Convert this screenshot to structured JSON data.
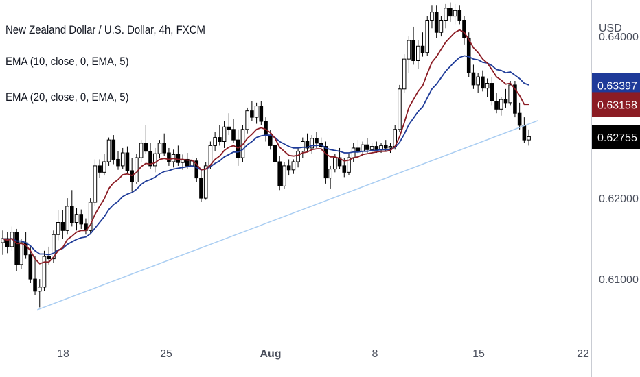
{
  "legend": {
    "title": "New Zealand Dollar / U.S. Dollar, 4h, FXCM",
    "ema1": "EMA (10, close, 0, EMA, 5)",
    "ema2": "EMA (20, close, 0, EMA, 5)"
  },
  "colors": {
    "ema10": "#8b1c24",
    "ema20": "#1f3c99",
    "trendline": "#a9cdf2",
    "candle_up": "#ffffff",
    "candle_down": "#000000",
    "badge_ema20": "#1e3a99",
    "badge_ema10": "#8b1c24",
    "badge_price": "#000000"
  },
  "chart_data": {
    "type": "candlestick",
    "currency_label": "USD",
    "x_tick_labels": [
      "18",
      "25",
      "Aug",
      "8",
      "15",
      "22"
    ],
    "y_tick_labels": [
      "0.64000",
      "0.62000",
      "0.61000"
    ],
    "ylim": [
      0.6045,
      0.6445
    ],
    "price_badges": [
      {
        "name": "ema20",
        "value": "0.63397"
      },
      {
        "name": "ema10",
        "value": "0.63158"
      },
      {
        "name": "last",
        "value": "0.62755"
      }
    ],
    "candles": [
      [
        0.6145,
        0.616,
        0.613,
        0.615
      ],
      [
        0.615,
        0.6158,
        0.6132,
        0.614
      ],
      [
        0.614,
        0.6165,
        0.6135,
        0.6158
      ],
      [
        0.6158,
        0.6162,
        0.611,
        0.6118
      ],
      [
        0.6118,
        0.615,
        0.6112,
        0.6145
      ],
      [
        0.6145,
        0.6158,
        0.6125,
        0.613
      ],
      [
        0.613,
        0.614,
        0.6095,
        0.61
      ],
      [
        0.61,
        0.6128,
        0.608,
        0.6085
      ],
      [
        0.6085,
        0.61,
        0.6065,
        0.609
      ],
      [
        0.609,
        0.6135,
        0.6085,
        0.6128
      ],
      [
        0.6128,
        0.614,
        0.6118,
        0.6125
      ],
      [
        0.6125,
        0.616,
        0.612,
        0.6155
      ],
      [
        0.6155,
        0.6185,
        0.6148,
        0.617
      ],
      [
        0.617,
        0.6185,
        0.615,
        0.616
      ],
      [
        0.616,
        0.62,
        0.6155,
        0.619
      ],
      [
        0.619,
        0.621,
        0.6165,
        0.617
      ],
      [
        0.617,
        0.6188,
        0.616,
        0.618
      ],
      [
        0.618,
        0.6186,
        0.6162,
        0.6168
      ],
      [
        0.6168,
        0.6175,
        0.6155,
        0.616
      ],
      [
        0.616,
        0.62,
        0.6155,
        0.6195
      ],
      [
        0.6195,
        0.6248,
        0.619,
        0.624
      ],
      [
        0.624,
        0.6248,
        0.6225,
        0.6232
      ],
      [
        0.6232,
        0.6255,
        0.6228,
        0.6245
      ],
      [
        0.6245,
        0.6275,
        0.624,
        0.6272
      ],
      [
        0.6272,
        0.6278,
        0.6242,
        0.6248
      ],
      [
        0.6248,
        0.6258,
        0.6235,
        0.624
      ],
      [
        0.624,
        0.6262,
        0.6236,
        0.6256
      ],
      [
        0.6256,
        0.6264,
        0.623,
        0.6234
      ],
      [
        0.6234,
        0.625,
        0.6208,
        0.622
      ],
      [
        0.622,
        0.6255,
        0.6218,
        0.625
      ],
      [
        0.625,
        0.6272,
        0.6245,
        0.6268
      ],
      [
        0.6268,
        0.629,
        0.6255,
        0.6258
      ],
      [
        0.6258,
        0.6268,
        0.6236,
        0.624
      ],
      [
        0.624,
        0.6262,
        0.6232,
        0.6255
      ],
      [
        0.6255,
        0.6272,
        0.625,
        0.6268
      ],
      [
        0.6268,
        0.628,
        0.6252,
        0.6256
      ],
      [
        0.6256,
        0.6262,
        0.624,
        0.6245
      ],
      [
        0.6245,
        0.626,
        0.6238,
        0.6254
      ],
      [
        0.6254,
        0.6265,
        0.624,
        0.6244
      ],
      [
        0.6244,
        0.6254,
        0.6235,
        0.6248
      ],
      [
        0.6248,
        0.6256,
        0.6236,
        0.624
      ],
      [
        0.624,
        0.6252,
        0.6232,
        0.6246
      ],
      [
        0.6246,
        0.625,
        0.622,
        0.6225
      ],
      [
        0.6225,
        0.6235,
        0.6195,
        0.62
      ],
      [
        0.62,
        0.6245,
        0.6198,
        0.624
      ],
      [
        0.624,
        0.627,
        0.6236,
        0.6265
      ],
      [
        0.6265,
        0.6282,
        0.6258,
        0.6275
      ],
      [
        0.6275,
        0.629,
        0.6265,
        0.627
      ],
      [
        0.627,
        0.6295,
        0.6262,
        0.6288
      ],
      [
        0.6288,
        0.6305,
        0.6278,
        0.6285
      ],
      [
        0.6285,
        0.6298,
        0.6268,
        0.6272
      ],
      [
        0.6272,
        0.6285,
        0.624,
        0.625
      ],
      [
        0.625,
        0.629,
        0.6245,
        0.6285
      ],
      [
        0.6285,
        0.6312,
        0.628,
        0.6308
      ],
      [
        0.6308,
        0.632,
        0.6295,
        0.63
      ],
      [
        0.63,
        0.6318,
        0.6292,
        0.6314
      ],
      [
        0.6314,
        0.632,
        0.629,
        0.6295
      ],
      [
        0.6295,
        0.63,
        0.627,
        0.6278
      ],
      [
        0.6278,
        0.6284,
        0.626,
        0.6265
      ],
      [
        0.6265,
        0.6272,
        0.624,
        0.6245
      ],
      [
        0.6245,
        0.6252,
        0.621,
        0.6215
      ],
      [
        0.6215,
        0.6245,
        0.6212,
        0.624
      ],
      [
        0.624,
        0.6248,
        0.6228,
        0.6235
      ],
      [
        0.6235,
        0.6248,
        0.623,
        0.6245
      ],
      [
        0.6245,
        0.6262,
        0.6238,
        0.6258
      ],
      [
        0.6258,
        0.6275,
        0.625,
        0.627
      ],
      [
        0.627,
        0.628,
        0.6258,
        0.6262
      ],
      [
        0.6262,
        0.6278,
        0.6255,
        0.6274
      ],
      [
        0.6274,
        0.6282,
        0.6262,
        0.6268
      ],
      [
        0.6268,
        0.6275,
        0.6258,
        0.6264
      ],
      [
        0.6264,
        0.627,
        0.6218,
        0.6225
      ],
      [
        0.6225,
        0.624,
        0.6212,
        0.6236
      ],
      [
        0.6236,
        0.6255,
        0.6232,
        0.625
      ],
      [
        0.625,
        0.6262,
        0.6236,
        0.624
      ],
      [
        0.624,
        0.625,
        0.6226,
        0.6232
      ],
      [
        0.6232,
        0.6255,
        0.6228,
        0.625
      ],
      [
        0.625,
        0.6268,
        0.6245,
        0.6262
      ],
      [
        0.6262,
        0.6272,
        0.6254,
        0.6258
      ],
      [
        0.6258,
        0.627,
        0.6252,
        0.6266
      ],
      [
        0.6266,
        0.6274,
        0.6256,
        0.626
      ],
      [
        0.626,
        0.6268,
        0.6254,
        0.6264
      ],
      [
        0.6264,
        0.627,
        0.6256,
        0.626
      ],
      [
        0.626,
        0.6268,
        0.6256,
        0.6265
      ],
      [
        0.6265,
        0.6272,
        0.6258,
        0.6262
      ],
      [
        0.6262,
        0.6268,
        0.6256,
        0.6264
      ],
      [
        0.6264,
        0.629,
        0.626,
        0.6285
      ],
      [
        0.6285,
        0.634,
        0.6282,
        0.6335
      ],
      [
        0.6335,
        0.6378,
        0.633,
        0.6372
      ],
      [
        0.6372,
        0.64,
        0.6355,
        0.6395
      ],
      [
        0.6395,
        0.6412,
        0.6365,
        0.637
      ],
      [
        0.637,
        0.6395,
        0.636,
        0.6388
      ],
      [
        0.6388,
        0.6405,
        0.6375,
        0.638
      ],
      [
        0.638,
        0.6425,
        0.6376,
        0.642
      ],
      [
        0.642,
        0.6438,
        0.641,
        0.643
      ],
      [
        0.643,
        0.6438,
        0.6398,
        0.6405
      ],
      [
        0.6405,
        0.6425,
        0.64,
        0.642
      ],
      [
        0.642,
        0.644,
        0.641,
        0.6435
      ],
      [
        0.6435,
        0.6442,
        0.6418,
        0.6425
      ],
      [
        0.6425,
        0.644,
        0.6415,
        0.6432
      ],
      [
        0.6432,
        0.6438,
        0.6415,
        0.642
      ],
      [
        0.642,
        0.6425,
        0.639,
        0.6398
      ],
      [
        0.6398,
        0.6405,
        0.635,
        0.6355
      ],
      [
        0.6355,
        0.6365,
        0.6335,
        0.634
      ],
      [
        0.634,
        0.6355,
        0.633,
        0.635
      ],
      [
        0.635,
        0.6358,
        0.6332,
        0.6336
      ],
      [
        0.6336,
        0.6348,
        0.6325,
        0.6342
      ],
      [
        0.6342,
        0.635,
        0.6315,
        0.632
      ],
      [
        0.632,
        0.633,
        0.6305,
        0.631
      ],
      [
        0.631,
        0.6325,
        0.6302,
        0.6322
      ],
      [
        0.6322,
        0.6335,
        0.6312,
        0.6318
      ],
      [
        0.6318,
        0.6345,
        0.6315,
        0.634
      ],
      [
        0.634,
        0.6345,
        0.63,
        0.6305
      ],
      [
        0.6305,
        0.6318,
        0.6285,
        0.629
      ],
      [
        0.629,
        0.63,
        0.6268,
        0.6272
      ],
      [
        0.6272,
        0.6285,
        0.6265,
        0.6276
      ]
    ],
    "ema10": [
      0.615,
      0.6148,
      0.615,
      0.6144,
      0.6144,
      0.6142,
      0.6135,
      0.6125,
      0.6119,
      0.6121,
      0.6121,
      0.6127,
      0.6135,
      0.6139,
      0.6149,
      0.6153,
      0.6158,
      0.616,
      0.616,
      0.6167,
      0.618,
      0.619,
      0.6199,
      0.6212,
      0.6219,
      0.6223,
      0.6229,
      0.623,
      0.6228,
      0.6232,
      0.6239,
      0.6243,
      0.6242,
      0.6244,
      0.6248,
      0.6249,
      0.6248,
      0.6249,
      0.6248,
      0.6248,
      0.6247,
      0.6247,
      0.6242,
      0.6235,
      0.6236,
      0.6241,
      0.6248,
      0.6252,
      0.6259,
      0.6263,
      0.6265,
      0.6262,
      0.6266,
      0.6274,
      0.6279,
      0.6285,
      0.6287,
      0.6285,
      0.6281,
      0.6274,
      0.6263,
      0.6258,
      0.6253,
      0.6252,
      0.6253,
      0.6256,
      0.6257,
      0.626,
      0.6261,
      0.6261,
      0.6255,
      0.6251,
      0.6251,
      0.6249,
      0.6246,
      0.6247,
      0.625,
      0.6251,
      0.6254,
      0.6255,
      0.6256,
      0.6257,
      0.6258,
      0.6258,
      0.6259,
      0.6264,
      0.6276,
      0.6293,
      0.6312,
      0.6322,
      0.6332,
      0.6339,
      0.6354,
      0.6368,
      0.6375,
      0.6384,
      0.6393,
      0.6399,
      0.6405,
      0.6408,
      0.6405,
      0.6396,
      0.6386,
      0.638,
      0.6372,
      0.6367,
      0.6359,
      0.635,
      0.6346,
      0.6341,
      0.6342,
      0.6335,
      0.6327,
      0.6316,
      0.6316
    ],
    "ema20": [
      0.615,
      0.6149,
      0.615,
      0.6147,
      0.6147,
      0.6145,
      0.6141,
      0.6135,
      0.6131,
      0.6131,
      0.613,
      0.6132,
      0.6136,
      0.6138,
      0.6143,
      0.6146,
      0.6149,
      0.6151,
      0.6152,
      0.6156,
      0.6163,
      0.617,
      0.6177,
      0.6186,
      0.6192,
      0.6196,
      0.6202,
      0.6205,
      0.6207,
      0.6211,
      0.6217,
      0.6221,
      0.6223,
      0.6226,
      0.623,
      0.6233,
      0.6234,
      0.6236,
      0.6237,
      0.6238,
      0.6239,
      0.624,
      0.6238,
      0.6235,
      0.6236,
      0.6239,
      0.6243,
      0.6246,
      0.6251,
      0.6254,
      0.6257,
      0.6257,
      0.626,
      0.6266,
      0.627,
      0.6275,
      0.6277,
      0.6278,
      0.6278,
      0.6275,
      0.627,
      0.6267,
      0.6264,
      0.6262,
      0.6262,
      0.6263,
      0.6263,
      0.6265,
      0.6265,
      0.6266,
      0.6262,
      0.626,
      0.6259,
      0.6258,
      0.6256,
      0.6256,
      0.6257,
      0.6257,
      0.6258,
      0.6258,
      0.6259,
      0.6259,
      0.626,
      0.626,
      0.626,
      0.6263,
      0.6269,
      0.6279,
      0.6291,
      0.6299,
      0.6307,
      0.6313,
      0.6324,
      0.6335,
      0.6341,
      0.6349,
      0.6357,
      0.6363,
      0.6369,
      0.6374,
      0.6376,
      0.6375,
      0.6372,
      0.6371,
      0.6368,
      0.6367,
      0.6364,
      0.6359,
      0.6358,
      0.6355,
      0.6356,
      0.6352,
      0.6348,
      0.6342,
      0.634
    ],
    "trendline": {
      "x1_index": 7.5,
      "y1": 0.6062,
      "x2_index": 116,
      "y2": 0.6296
    }
  }
}
